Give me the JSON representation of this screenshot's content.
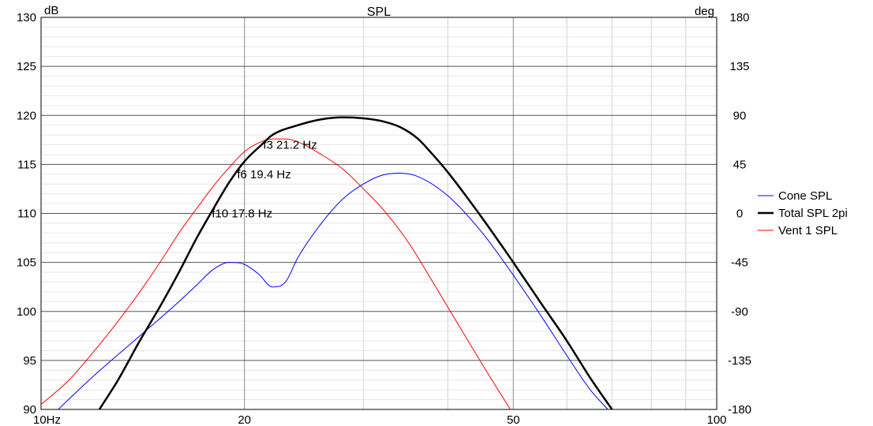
{
  "chart_data": {
    "type": "line",
    "title": "SPL",
    "y_unit_left": "dB",
    "y_unit_right": "deg",
    "x_scale": "log",
    "xlim": [
      10,
      100
    ],
    "ylim": [
      90,
      130
    ],
    "y2lim": [
      -180,
      180
    ],
    "grid": true,
    "x_ticks": [
      {
        "value": 10,
        "label": "10Hz"
      },
      {
        "value": 20,
        "label": "20"
      },
      {
        "value": 50,
        "label": "50"
      },
      {
        "value": 100,
        "label": "100"
      }
    ],
    "y_ticks": [
      {
        "value": 130,
        "label": "130"
      },
      {
        "value": 125,
        "label": "125"
      },
      {
        "value": 120,
        "label": "120"
      },
      {
        "value": 115,
        "label": "115"
      },
      {
        "value": 110,
        "label": "110"
      },
      {
        "value": 105,
        "label": "105"
      },
      {
        "value": 100,
        "label": "100"
      },
      {
        "value": 95,
        "label": "95"
      },
      {
        "value": 90,
        "label": "90"
      }
    ],
    "y2_ticks": [
      {
        "value": 180,
        "label": "180"
      },
      {
        "value": 135,
        "label": "135"
      },
      {
        "value": 90,
        "label": "90"
      },
      {
        "value": 45,
        "label": "45"
      },
      {
        "value": 0,
        "label": "0"
      },
      {
        "value": -45,
        "label": "-45"
      },
      {
        "value": -90,
        "label": "-90"
      },
      {
        "value": -135,
        "label": "-135"
      },
      {
        "value": -180,
        "label": "-180"
      }
    ],
    "legend_position": "right",
    "series": [
      {
        "name": "Cone SPL",
        "color": "#0000ff",
        "width": 1,
        "points": [
          [
            10.6,
            90.0
          ],
          [
            12,
            93.5
          ],
          [
            14,
            97.5
          ],
          [
            16,
            101.0
          ],
          [
            17,
            102.7
          ],
          [
            18,
            104.3
          ],
          [
            19,
            105.0
          ],
          [
            20,
            104.8
          ],
          [
            21,
            103.8
          ],
          [
            22,
            102.5
          ],
          [
            23,
            103.0
          ],
          [
            24,
            105.5
          ],
          [
            26,
            109.0
          ],
          [
            28,
            111.5
          ],
          [
            30,
            113.0
          ],
          [
            32,
            113.9
          ],
          [
            34,
            114.1
          ],
          [
            36,
            113.8
          ],
          [
            40,
            111.8
          ],
          [
            45,
            108.0
          ],
          [
            50,
            103.7
          ],
          [
            55,
            99.5
          ],
          [
            60,
            95.5
          ],
          [
            65,
            92.0
          ],
          [
            69,
            90.0
          ]
        ]
      },
      {
        "name": "Total SPL 2pi",
        "color": "#000000",
        "width": 2.5,
        "points": [
          [
            12.2,
            90.0
          ],
          [
            13,
            93.0
          ],
          [
            14,
            97.0
          ],
          [
            15,
            100.5
          ],
          [
            16,
            104.0
          ],
          [
            17,
            107.5
          ],
          [
            18,
            110.5
          ],
          [
            19,
            113.2
          ],
          [
            20,
            115.3
          ],
          [
            21.2,
            117.0
          ],
          [
            22,
            118.0
          ],
          [
            24,
            119.0
          ],
          [
            26,
            119.6
          ],
          [
            28,
            119.8
          ],
          [
            30,
            119.7
          ],
          [
            32,
            119.4
          ],
          [
            34,
            118.8
          ],
          [
            36,
            117.7
          ],
          [
            38,
            116.0
          ],
          [
            40,
            114.2
          ],
          [
            45,
            109.5
          ],
          [
            50,
            105.0
          ],
          [
            55,
            100.8
          ],
          [
            60,
            97.0
          ],
          [
            65,
            93.2
          ],
          [
            70,
            90.0
          ]
        ]
      },
      {
        "name": "Vent 1 SPL",
        "color": "#ff0000",
        "width": 1,
        "points": [
          [
            10,
            90.5
          ],
          [
            11,
            93.0
          ],
          [
            12,
            96.0
          ],
          [
            13,
            99.0
          ],
          [
            14,
            102.0
          ],
          [
            15,
            105.0
          ],
          [
            16,
            108.0
          ],
          [
            17,
            110.5
          ],
          [
            18,
            112.8
          ],
          [
            19,
            114.7
          ],
          [
            20,
            116.3
          ],
          [
            21,
            117.2
          ],
          [
            22,
            117.6
          ],
          [
            23,
            117.6
          ],
          [
            24,
            117.3
          ],
          [
            26,
            116.0
          ],
          [
            28,
            114.5
          ],
          [
            30,
            112.5
          ],
          [
            32,
            110.5
          ],
          [
            35,
            107.0
          ],
          [
            38,
            103.0
          ],
          [
            42,
            98.0
          ],
          [
            46,
            93.5
          ],
          [
            49.5,
            90.0
          ]
        ]
      }
    ],
    "annotations": [
      {
        "text": "f3 21.2 Hz",
        "x": 21.2,
        "y": 117.0
      },
      {
        "text": "f6 19.4 Hz",
        "x": 19.4,
        "y": 114.0
      },
      {
        "text": "f10 17.8 Hz",
        "x": 17.8,
        "y": 110.0
      }
    ]
  }
}
